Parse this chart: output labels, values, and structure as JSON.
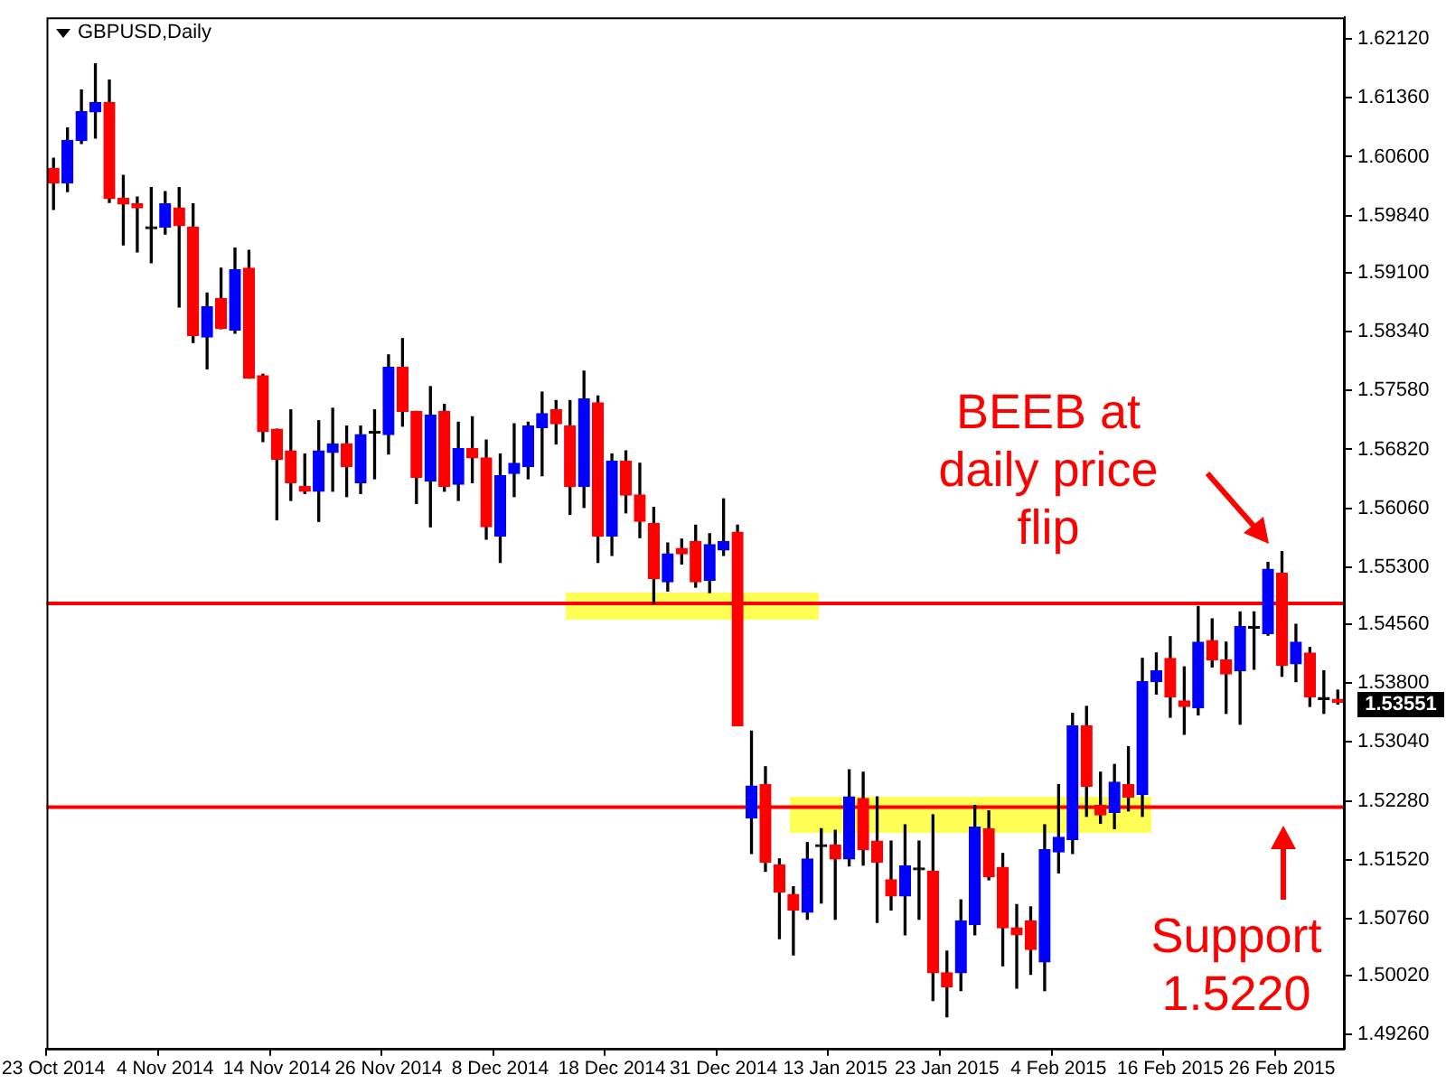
{
  "chart_data": {
    "type": "candlestick",
    "title": "GBPUSD,Daily",
    "categories": [
      "23 Oct 2014",
      null,
      null,
      null,
      null,
      null,
      null,
      null,
      "4 Nov 2014",
      null,
      null,
      null,
      null,
      null,
      null,
      null,
      "14 Nov 2014",
      null,
      null,
      null,
      null,
      null,
      null,
      null,
      "26 Nov 2014",
      null,
      null,
      null,
      null,
      null,
      null,
      null,
      "8 Dec 2014",
      null,
      null,
      null,
      null,
      null,
      null,
      null,
      "18 Dec 2014",
      null,
      null,
      null,
      null,
      null,
      null,
      null,
      "31 Dec 2014",
      null,
      null,
      null,
      null,
      null,
      null,
      null,
      "13 Jan 2015",
      null,
      null,
      null,
      null,
      null,
      null,
      null,
      "23 Jan 2015",
      null,
      null,
      null,
      null,
      null,
      null,
      null,
      "4 Feb 2015",
      null,
      null,
      null,
      null,
      null,
      null,
      null,
      "16 Feb 2015",
      null,
      null,
      null,
      null,
      null,
      null,
      null,
      "26 Feb 2015",
      null,
      null,
      null,
      null
    ],
    "ohlc": [
      [
        1.6045,
        1.6058,
        1.5992,
        1.6026
      ],
      [
        1.6026,
        1.6097,
        1.6015,
        1.6081
      ],
      [
        1.6081,
        1.6146,
        1.6077,
        1.6118
      ],
      [
        1.6118,
        1.618,
        1.6084,
        1.613
      ],
      [
        1.613,
        1.6159,
        1.6001,
        1.6006
      ],
      [
        1.6006,
        1.6036,
        1.5946,
        1.5999
      ],
      [
        1.5999,
        1.6008,
        1.5937,
        1.5994
      ],
      [
        1.5967,
        1.602,
        1.5923,
        1.5967
      ],
      [
        1.5969,
        1.6015,
        1.596,
        1.5999
      ],
      [
        1.5994,
        1.602,
        1.5866,
        1.5971
      ],
      [
        1.5969,
        1.5999,
        1.582,
        1.5829
      ],
      [
        1.5827,
        1.5884,
        1.5786,
        1.5866
      ],
      [
        1.5877,
        1.5916,
        1.5838,
        1.5838
      ],
      [
        1.5836,
        1.5942,
        1.5832,
        1.5914
      ],
      [
        1.5916,
        1.5939,
        1.5774,
        1.5774
      ],
      [
        1.5777,
        1.5779,
        1.5692,
        1.5705
      ],
      [
        1.5708,
        1.5708,
        1.5591,
        1.5669
      ],
      [
        1.568,
        1.5733,
        1.5616,
        1.5639
      ],
      [
        1.5634,
        1.5676,
        1.5625,
        1.5628
      ],
      [
        1.5628,
        1.5719,
        1.5589,
        1.568
      ],
      [
        1.5678,
        1.5735,
        1.5628,
        1.5689
      ],
      [
        1.5689,
        1.5712,
        1.5621,
        1.566
      ],
      [
        1.5639,
        1.5712,
        1.5625,
        1.5701
      ],
      [
        1.5703,
        1.5733,
        1.5644,
        1.5703
      ],
      [
        1.5701,
        1.5804,
        1.5676,
        1.5788
      ],
      [
        1.5788,
        1.5825,
        1.5712,
        1.5731
      ],
      [
        1.5731,
        1.5731,
        1.5612,
        1.5646
      ],
      [
        1.5641,
        1.5763,
        1.5582,
        1.5726
      ],
      [
        1.5731,
        1.574,
        1.5628,
        1.5634
      ],
      [
        1.5637,
        1.5717,
        1.5616,
        1.5683
      ],
      [
        1.5683,
        1.5724,
        1.5639,
        1.5671
      ],
      [
        1.5671,
        1.5694,
        1.5566,
        1.5582
      ],
      [
        1.557,
        1.5676,
        1.5536,
        1.5648
      ],
      [
        1.5651,
        1.5715,
        1.5621,
        1.5664
      ],
      [
        1.566,
        1.5717,
        1.5644,
        1.5712
      ],
      [
        1.571,
        1.5756,
        1.5648,
        1.5728
      ],
      [
        1.5733,
        1.5745,
        1.5689,
        1.5715
      ],
      [
        1.5712,
        1.5745,
        1.5598,
        1.5634
      ],
      [
        1.5634,
        1.5783,
        1.5607,
        1.5747
      ],
      [
        1.5742,
        1.5751,
        1.5536,
        1.557
      ],
      [
        1.557,
        1.5676,
        1.5545,
        1.5667
      ],
      [
        1.5667,
        1.568,
        1.56,
        1.5623
      ],
      [
        1.5623,
        1.5664,
        1.5568,
        1.5589
      ],
      [
        1.5586,
        1.5607,
        1.5483,
        1.5515
      ],
      [
        1.5511,
        1.5561,
        1.5499,
        1.5547
      ],
      [
        1.5554,
        1.5566,
        1.5534,
        1.5547
      ],
      [
        1.5563,
        1.5584,
        1.5504,
        1.5511
      ],
      [
        1.5513,
        1.5573,
        1.5497,
        1.5559
      ],
      [
        1.5552,
        1.5618,
        1.5545,
        1.5563
      ],
      [
        1.5575,
        1.5584,
        1.5325,
        1.5325
      ],
      [
        1.5206,
        1.5318,
        1.516,
        1.5247
      ],
      [
        1.5249,
        1.5272,
        1.5137,
        1.5149
      ],
      [
        1.5145,
        1.5153,
        1.505,
        1.511
      ],
      [
        1.5107,
        1.5117,
        1.5029,
        1.5087
      ],
      [
        1.5084,
        1.5174,
        1.5075,
        1.5153
      ],
      [
        1.5169,
        1.5192,
        1.5096,
        1.5169
      ],
      [
        1.5171,
        1.519,
        1.5075,
        1.5153
      ],
      [
        1.5153,
        1.5268,
        1.5144,
        1.5233
      ],
      [
        1.5231,
        1.5265,
        1.5145,
        1.5165
      ],
      [
        1.5176,
        1.5233,
        1.5071,
        1.5149
      ],
      [
        1.5126,
        1.5176,
        1.5087,
        1.5105
      ],
      [
        1.5105,
        1.5197,
        1.5055,
        1.5144
      ],
      [
        1.5139,
        1.5176,
        1.5075,
        1.5139
      ],
      [
        1.5137,
        1.521,
        1.497,
        1.5006
      ],
      [
        1.5006,
        1.5034,
        1.4949,
        1.4988
      ],
      [
        1.5006,
        1.51,
        1.4983,
        1.5073
      ],
      [
        1.5068,
        1.5222,
        1.5055,
        1.5194
      ],
      [
        1.5192,
        1.5215,
        1.5126,
        1.513
      ],
      [
        1.5142,
        1.516,
        1.5015,
        1.5064
      ],
      [
        1.5064,
        1.5094,
        1.4986,
        1.5055
      ],
      [
        1.5073,
        1.5091,
        1.5004,
        1.5036
      ],
      [
        1.502,
        1.5197,
        1.4983,
        1.5165
      ],
      [
        1.5162,
        1.5249,
        1.5135,
        1.5181
      ],
      [
        1.5178,
        1.5341,
        1.516,
        1.5325
      ],
      [
        1.5325,
        1.535,
        1.5208,
        1.5247
      ],
      [
        1.5222,
        1.5265,
        1.5199,
        1.521
      ],
      [
        1.5213,
        1.5275,
        1.5192,
        1.5252
      ],
      [
        1.5249,
        1.5298,
        1.5215,
        1.5233
      ],
      [
        1.5236,
        1.5412,
        1.5208,
        1.5382
      ],
      [
        1.5382,
        1.5419,
        1.5366,
        1.5396
      ],
      [
        1.5412,
        1.544,
        1.5336,
        1.5362
      ],
      [
        1.5357,
        1.5401,
        1.5314,
        1.535
      ],
      [
        1.5348,
        1.5479,
        1.5339,
        1.5433
      ],
      [
        1.5435,
        1.5463,
        1.5401,
        1.541
      ],
      [
        1.541,
        1.5433,
        1.5341,
        1.5392
      ],
      [
        1.5396,
        1.5472,
        1.5327,
        1.5453
      ],
      [
        1.5451,
        1.5472,
        1.5398,
        1.5451
      ],
      [
        1.5444,
        1.5536,
        1.5442,
        1.5527
      ],
      [
        1.5522,
        1.555,
        1.5389,
        1.5403
      ],
      [
        1.5405,
        1.5456,
        1.5382,
        1.5433
      ],
      [
        1.5419,
        1.5426,
        1.535,
        1.5362
      ],
      [
        1.5359,
        1.5396,
        1.5341,
        1.5359
      ],
      [
        1.5359,
        1.5371,
        1.5353,
        1.5355
      ]
    ],
    "colors": [
      "#ff0000",
      "#0000ff",
      "#0000ff",
      "#0000ff",
      "#ff0000",
      "#ff0000",
      "#ff0000",
      "#000000",
      "#0000ff",
      "#ff0000",
      "#ff0000",
      "#0000ff",
      "#ff0000",
      "#0000ff",
      "#ff0000",
      "#ff0000",
      "#ff0000",
      "#ff0000",
      "#ff0000",
      "#0000ff",
      "#0000ff",
      "#ff0000",
      "#0000ff",
      "#000000",
      "#0000ff",
      "#ff0000",
      "#ff0000",
      "#0000ff",
      "#ff0000",
      "#0000ff",
      "#ff0000",
      "#ff0000",
      "#0000ff",
      "#0000ff",
      "#0000ff",
      "#0000ff",
      "#ff0000",
      "#ff0000",
      "#0000ff",
      "#ff0000",
      "#0000ff",
      "#ff0000",
      "#ff0000",
      "#ff0000",
      "#0000ff",
      "#ff0000",
      "#ff0000",
      "#0000ff",
      "#0000ff",
      "#ff0000",
      "#0000ff",
      "#ff0000",
      "#ff0000",
      "#ff0000",
      "#0000ff",
      "#000000",
      "#ff0000",
      "#0000ff",
      "#ff0000",
      "#ff0000",
      "#ff0000",
      "#0000ff",
      "#000000",
      "#ff0000",
      "#ff0000",
      "#0000ff",
      "#0000ff",
      "#ff0000",
      "#ff0000",
      "#ff0000",
      "#ff0000",
      "#0000ff",
      "#0000ff",
      "#0000ff",
      "#ff0000",
      "#ff0000",
      "#0000ff",
      "#ff0000",
      "#0000ff",
      "#0000ff",
      "#ff0000",
      "#ff0000",
      "#0000ff",
      "#ff0000",
      "#ff0000",
      "#0000ff",
      "#000000",
      "#0000ff",
      "#ff0000",
      "#0000ff",
      "#ff0000",
      "#000000",
      "#ff0000"
    ],
    "ylim": [
      1.4908,
      1.624
    ],
    "yticks": [
      {
        "value": 1.6212,
        "label": "1.62120"
      },
      {
        "value": 1.6136,
        "label": "1.61360"
      },
      {
        "value": 1.606,
        "label": "1.60600"
      },
      {
        "value": 1.5984,
        "label": "1.59840"
      },
      {
        "value": 1.591,
        "label": "1.59100"
      },
      {
        "value": 1.5834,
        "label": "1.58340"
      },
      {
        "value": 1.5758,
        "label": "1.57580"
      },
      {
        "value": 1.5682,
        "label": "1.56820"
      },
      {
        "value": 1.5606,
        "label": "1.56060"
      },
      {
        "value": 1.553,
        "label": "1.55300"
      },
      {
        "value": 1.5456,
        "label": "1.54560"
      },
      {
        "value": 1.538,
        "label": "1.53800"
      },
      {
        "value": 1.5304,
        "label": "1.53040"
      },
      {
        "value": 1.5228,
        "label": "1.52280"
      },
      {
        "value": 1.5152,
        "label": "1.51520"
      },
      {
        "value": 1.5076,
        "label": "1.50760"
      },
      {
        "value": 1.5002,
        "label": "1.50020"
      },
      {
        "value": 1.4926,
        "label": "1.49260"
      }
    ],
    "ref_lines": [
      {
        "axis": "y",
        "value": 1.5483,
        "color": "#ff0000"
      },
      {
        "axis": "y",
        "value": 1.522,
        "color": "#ff0000"
      }
    ],
    "annotations": [
      "BEEB at daily price flip",
      "Support 1.5220",
      "1.53551"
    ],
    "grid": false,
    "legend": false
  }
}
